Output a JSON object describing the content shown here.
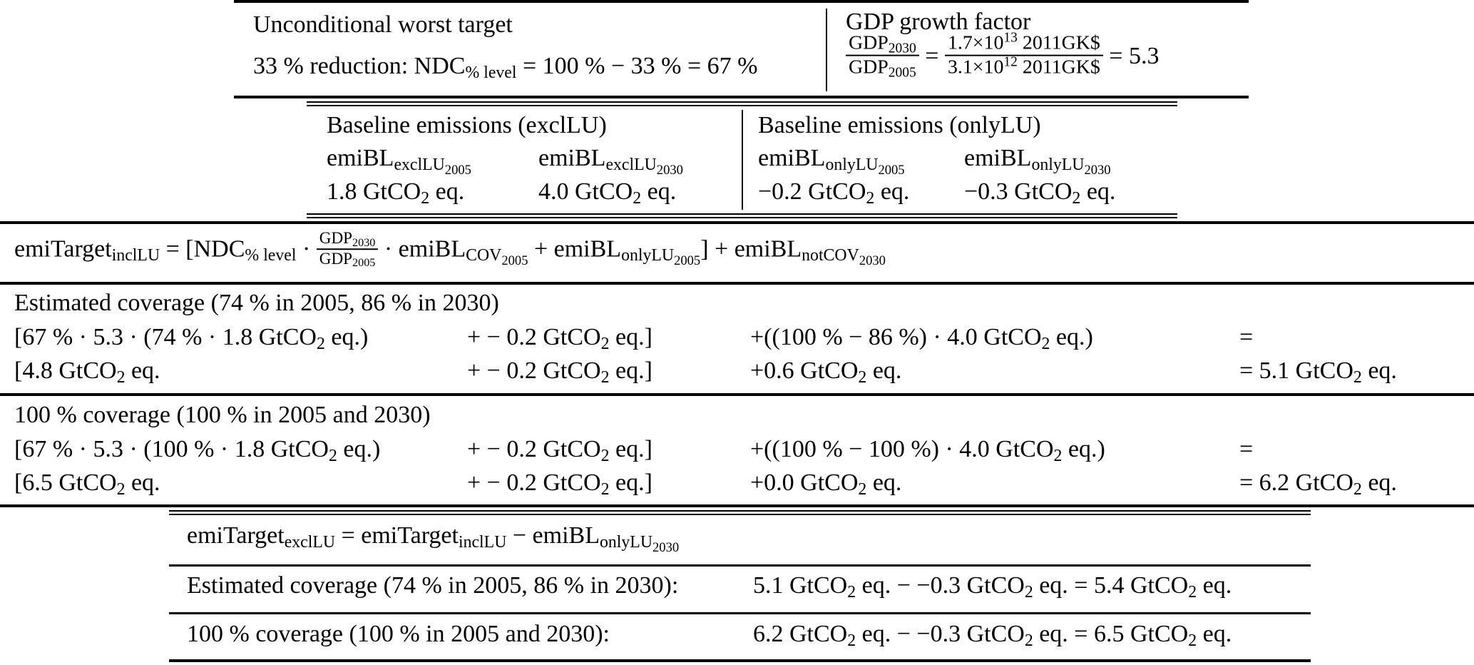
{
  "colors": {
    "text": "#000000",
    "background": "#ffffff",
    "rule": "#000000"
  },
  "top_box": {
    "worst_target": {
      "title": "Unconditional worst target",
      "formula": [
        {
          "t": "txt",
          "v": "33 % reduction: NDC"
        },
        {
          "t": "sub",
          "v": [
            {
              "t": "txt",
              "v": "% level"
            }
          ]
        },
        {
          "t": "txt",
          "v": " = 100 % − 33 % = 67 %"
        }
      ]
    },
    "gdp_growth": {
      "title": "GDP growth factor",
      "formula": [
        {
          "t": "frac",
          "num": [
            {
              "t": "txt",
              "v": "GDP"
            },
            {
              "t": "sub",
              "v": [
                {
                  "t": "txt",
                  "v": "2030"
                }
              ]
            }
          ],
          "den": [
            {
              "t": "txt",
              "v": "GDP"
            },
            {
              "t": "sub",
              "v": [
                {
                  "t": "txt",
                  "v": "2005"
                }
              ]
            }
          ]
        },
        {
          "t": "txt",
          "v": " = "
        },
        {
          "t": "frac",
          "num": [
            {
              "t": "txt",
              "v": "1.7×10"
            },
            {
              "t": "sup",
              "v": [
                {
                  "t": "txt",
                  "v": "13"
                }
              ]
            },
            {
              "t": "txt",
              "v": " 2011GK$"
            }
          ],
          "den": [
            {
              "t": "txt",
              "v": "3.1×10"
            },
            {
              "t": "sup",
              "v": [
                {
                  "t": "txt",
                  "v": "12"
                }
              ]
            },
            {
              "t": "txt",
              "v": " 2011GK$"
            }
          ]
        },
        {
          "t": "txt",
          "v": " = 5.3"
        }
      ]
    }
  },
  "baseline_box": {
    "excl_lu": {
      "title": "Baseline emissions (exclLU)",
      "col2005": {
        "header": [
          {
            "t": "txt",
            "v": "emiBL"
          },
          {
            "t": "sub",
            "v": [
              {
                "t": "txt",
                "v": "exclLU"
              },
              {
                "t": "sub",
                "v": [
                  {
                    "t": "txt",
                    "v": "2005"
                  }
                ]
              }
            ]
          }
        ],
        "value": [
          {
            "t": "txt",
            "v": "1.8 GtCO"
          },
          {
            "t": "sub",
            "v": [
              {
                "t": "txt",
                "v": "2"
              }
            ]
          },
          {
            "t": "txt",
            "v": " eq."
          }
        ]
      },
      "col2030": {
        "header": [
          {
            "t": "txt",
            "v": "emiBL"
          },
          {
            "t": "sub",
            "v": [
              {
                "t": "txt",
                "v": "exclLU"
              },
              {
                "t": "sub",
                "v": [
                  {
                    "t": "txt",
                    "v": "2030"
                  }
                ]
              }
            ]
          }
        ],
        "value": [
          {
            "t": "txt",
            "v": "4.0 GtCO"
          },
          {
            "t": "sub",
            "v": [
              {
                "t": "txt",
                "v": "2"
              }
            ]
          },
          {
            "t": "txt",
            "v": " eq."
          }
        ]
      }
    },
    "only_lu": {
      "title": "Baseline emissions (onlyLU)",
      "col2005": {
        "header": [
          {
            "t": "txt",
            "v": "emiBL"
          },
          {
            "t": "sub",
            "v": [
              {
                "t": "txt",
                "v": "onlyLU"
              },
              {
                "t": "sub",
                "v": [
                  {
                    "t": "txt",
                    "v": "2005"
                  }
                ]
              }
            ]
          }
        ],
        "value": [
          {
            "t": "txt",
            "v": "−0.2 GtCO"
          },
          {
            "t": "sub",
            "v": [
              {
                "t": "txt",
                "v": "2"
              }
            ]
          },
          {
            "t": "txt",
            "v": " eq."
          }
        ]
      },
      "col2030": {
        "header": [
          {
            "t": "txt",
            "v": "emiBL"
          },
          {
            "t": "sub",
            "v": [
              {
                "t": "txt",
                "v": "onlyLU"
              },
              {
                "t": "sub",
                "v": [
                  {
                    "t": "txt",
                    "v": "2030"
                  }
                ]
              }
            ]
          }
        ],
        "value": [
          {
            "t": "txt",
            "v": "−0.3 GtCO"
          },
          {
            "t": "sub",
            "v": [
              {
                "t": "txt",
                "v": "2"
              }
            ]
          },
          {
            "t": "txt",
            "v": " eq."
          }
        ]
      }
    }
  },
  "target_incl_formula": [
    {
      "t": "txt",
      "v": "emiTarget"
    },
    {
      "t": "sub",
      "v": [
        {
          "t": "txt",
          "v": "inclLU"
        }
      ]
    },
    {
      "t": "txt",
      "v": " = [NDC"
    },
    {
      "t": "sub",
      "v": [
        {
          "t": "txt",
          "v": "% level"
        }
      ]
    },
    {
      "t": "txt",
      "v": " · "
    },
    {
      "t": "frac",
      "s": true,
      "num": [
        {
          "t": "txt",
          "v": "GDP"
        },
        {
          "t": "sub",
          "v": [
            {
              "t": "txt",
              "v": "2030"
            }
          ]
        }
      ],
      "den": [
        {
          "t": "txt",
          "v": "GDP"
        },
        {
          "t": "sub",
          "v": [
            {
              "t": "txt",
              "v": "2005"
            }
          ]
        }
      ]
    },
    {
      "t": "txt",
      "v": " · emiBL"
    },
    {
      "t": "sub",
      "v": [
        {
          "t": "txt",
          "v": "COV"
        },
        {
          "t": "sub",
          "v": [
            {
              "t": "txt",
              "v": "2005"
            }
          ]
        }
      ]
    },
    {
      "t": "txt",
      "v": " + emiBL"
    },
    {
      "t": "sub",
      "v": [
        {
          "t": "txt",
          "v": "onlyLU"
        },
        {
          "t": "sub",
          "v": [
            {
              "t": "txt",
              "v": "2005"
            }
          ]
        }
      ]
    },
    {
      "t": "txt",
      "v": "] + emiBL"
    },
    {
      "t": "sub",
      "v": [
        {
          "t": "txt",
          "v": "notCOV"
        },
        {
          "t": "sub",
          "v": [
            {
              "t": "txt",
              "v": "2030"
            }
          ]
        }
      ]
    }
  ],
  "estimated_coverage": {
    "title": "Estimated coverage (74 % in 2005, 86 % in 2030)",
    "calc_row": {
      "c1": [
        {
          "t": "txt",
          "v": "[67 % · 5.3 · (74 % · 1.8 GtCO"
        },
        {
          "t": "sub",
          "v": [
            {
              "t": "txt",
              "v": "2"
            }
          ]
        },
        {
          "t": "txt",
          "v": " eq.)"
        }
      ],
      "c2": [
        {
          "t": "txt",
          "v": "+ − 0.2 GtCO"
        },
        {
          "t": "sub",
          "v": [
            {
              "t": "txt",
              "v": "2"
            }
          ]
        },
        {
          "t": "txt",
          "v": " eq.]"
        }
      ],
      "c3": [
        {
          "t": "txt",
          "v": "+((100 % − 86 %) · 4.0 GtCO"
        },
        {
          "t": "sub",
          "v": [
            {
              "t": "txt",
              "v": "2"
            }
          ]
        },
        {
          "t": "txt",
          "v": " eq.)"
        }
      ],
      "c4": [
        {
          "t": "txt",
          "v": "="
        }
      ]
    },
    "result_row": {
      "c1": [
        {
          "t": "txt",
          "v": "[4.8 GtCO"
        },
        {
          "t": "sub",
          "v": [
            {
              "t": "txt",
              "v": "2"
            }
          ]
        },
        {
          "t": "txt",
          "v": " eq."
        }
      ],
      "c2": [
        {
          "t": "txt",
          "v": "+ − 0.2 GtCO"
        },
        {
          "t": "sub",
          "v": [
            {
              "t": "txt",
              "v": "2"
            }
          ]
        },
        {
          "t": "txt",
          "v": " eq.]"
        }
      ],
      "c3": [
        {
          "t": "txt",
          "v": "+0.6 GtCO"
        },
        {
          "t": "sub",
          "v": [
            {
              "t": "txt",
              "v": "2"
            }
          ]
        },
        {
          "t": "txt",
          "v": " eq."
        }
      ],
      "c4": [
        {
          "t": "txt",
          "v": "= 5.1 GtCO"
        },
        {
          "t": "sub",
          "v": [
            {
              "t": "txt",
              "v": "2"
            }
          ]
        },
        {
          "t": "txt",
          "v": " eq."
        }
      ]
    }
  },
  "full_coverage": {
    "title": "100 % coverage (100 % in 2005 and 2030)",
    "calc_row": {
      "c1": [
        {
          "t": "txt",
          "v": "[67 % · 5.3 · (100 % · 1.8 GtCO"
        },
        {
          "t": "sub",
          "v": [
            {
              "t": "txt",
              "v": "2"
            }
          ]
        },
        {
          "t": "txt",
          "v": " eq.)"
        }
      ],
      "c2": [
        {
          "t": "txt",
          "v": "+ − 0.2 GtCO"
        },
        {
          "t": "sub",
          "v": [
            {
              "t": "txt",
              "v": "2"
            }
          ]
        },
        {
          "t": "txt",
          "v": " eq.]"
        }
      ],
      "c3": [
        {
          "t": "txt",
          "v": "+((100 % − 100 %) · 4.0 GtCO"
        },
        {
          "t": "sub",
          "v": [
            {
              "t": "txt",
              "v": "2"
            }
          ]
        },
        {
          "t": "txt",
          "v": " eq.)"
        }
      ],
      "c4": [
        {
          "t": "txt",
          "v": "="
        }
      ]
    },
    "result_row": {
      "c1": [
        {
          "t": "txt",
          "v": "[6.5 GtCO"
        },
        {
          "t": "sub",
          "v": [
            {
              "t": "txt",
              "v": "2"
            }
          ]
        },
        {
          "t": "txt",
          "v": " eq."
        }
      ],
      "c2": [
        {
          "t": "txt",
          "v": "+ − 0.2 GtCO"
        },
        {
          "t": "sub",
          "v": [
            {
              "t": "txt",
              "v": "2"
            }
          ]
        },
        {
          "t": "txt",
          "v": " eq.]"
        }
      ],
      "c3": [
        {
          "t": "txt",
          "v": "+0.0 GtCO"
        },
        {
          "t": "sub",
          "v": [
            {
              "t": "txt",
              "v": "2"
            }
          ]
        },
        {
          "t": "txt",
          "v": " eq."
        }
      ],
      "c4": [
        {
          "t": "txt",
          "v": "= 6.2 GtCO"
        },
        {
          "t": "sub",
          "v": [
            {
              "t": "txt",
              "v": "2"
            }
          ]
        },
        {
          "t": "txt",
          "v": " eq."
        }
      ]
    }
  },
  "bottom_box": {
    "target_excl_formula": [
      {
        "t": "txt",
        "v": "emiTarget"
      },
      {
        "t": "sub",
        "v": [
          {
            "t": "txt",
            "v": "exclLU"
          }
        ]
      },
      {
        "t": "txt",
        "v": " = emiTarget"
      },
      {
        "t": "sub",
        "v": [
          {
            "t": "txt",
            "v": "inclLU"
          }
        ]
      },
      {
        "t": "txt",
        "v": " − emiBL"
      },
      {
        "t": "sub",
        "v": [
          {
            "t": "txt",
            "v": "onlyLU"
          },
          {
            "t": "sub",
            "v": [
              {
                "t": "txt",
                "v": "2030"
              }
            ]
          }
        ]
      }
    ],
    "estimated_row": {
      "label": "Estimated coverage (74 % in 2005, 86 % in 2030):",
      "value": [
        {
          "t": "txt",
          "v": "5.1 GtCO"
        },
        {
          "t": "sub",
          "v": [
            {
              "t": "txt",
              "v": "2"
            }
          ]
        },
        {
          "t": "txt",
          "v": " eq. − −0.3 GtCO"
        },
        {
          "t": "sub",
          "v": [
            {
              "t": "txt",
              "v": "2"
            }
          ]
        },
        {
          "t": "txt",
          "v": " eq. = 5.4 GtCO"
        },
        {
          "t": "sub",
          "v": [
            {
              "t": "txt",
              "v": "2"
            }
          ]
        },
        {
          "t": "txt",
          "v": " eq."
        }
      ]
    },
    "full_row": {
      "label": "100 % coverage (100 % in 2005 and 2030):",
      "value": [
        {
          "t": "txt",
          "v": "6.2 GtCO"
        },
        {
          "t": "sub",
          "v": [
            {
              "t": "txt",
              "v": "2"
            }
          ]
        },
        {
          "t": "txt",
          "v": " eq. − −0.3 GtCO"
        },
        {
          "t": "sub",
          "v": [
            {
              "t": "txt",
              "v": "2"
            }
          ]
        },
        {
          "t": "txt",
          "v": " eq. = 6.5 GtCO"
        },
        {
          "t": "sub",
          "v": [
            {
              "t": "txt",
              "v": "2"
            }
          ]
        },
        {
          "t": "txt",
          "v": " eq."
        }
      ]
    }
  }
}
